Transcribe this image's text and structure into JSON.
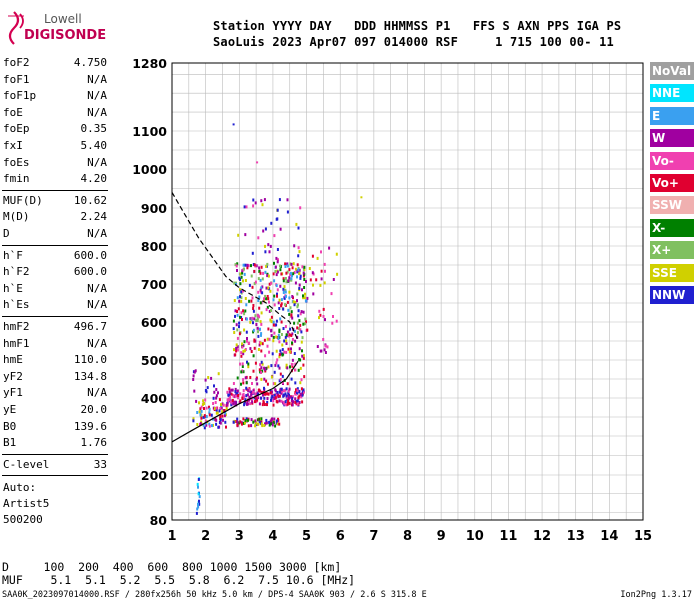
{
  "logo": {
    "line1": "Lowell",
    "line2": "DIGISONDE"
  },
  "header": {
    "line1": "Station YYYY DAY   DDD HHMMSS P1   FFS S AXN PPS IGA PS",
    "line2": "SaoLuis 2023 Apr07 097 014000 RSF     1 715 100 00- 11"
  },
  "params_group1": [
    {
      "label": "foF2",
      "value": "4.750"
    },
    {
      "label": "foF1",
      "value": "N/A"
    },
    {
      "label": "foF1p",
      "value": "N/A"
    },
    {
      "label": "foE",
      "value": "N/A"
    },
    {
      "label": "foEp",
      "value": "0.35"
    },
    {
      "label": "fxI",
      "value": "5.40"
    },
    {
      "label": "foEs",
      "value": "N/A"
    },
    {
      "label": "fmin",
      "value": "4.20"
    }
  ],
  "params_group2": [
    {
      "label": "MUF(D)",
      "value": "10.62"
    },
    {
      "label": "M(D)",
      "value": "2.24"
    },
    {
      "label": "D",
      "value": "N/A"
    }
  ],
  "params_group3": [
    {
      "label": "h`F",
      "value": "600.0"
    },
    {
      "label": "h`F2",
      "value": "600.0"
    },
    {
      "label": "h`E",
      "value": "N/A"
    },
    {
      "label": "h`Es",
      "value": "N/A"
    }
  ],
  "params_group4": [
    {
      "label": "hmF2",
      "value": "496.7"
    },
    {
      "label": "hmF1",
      "value": "N/A"
    },
    {
      "label": "hmE",
      "value": "110.0"
    },
    {
      "label": "yF2",
      "value": "134.8"
    },
    {
      "label": "yF1",
      "value": "N/A"
    },
    {
      "label": "yE",
      "value": "20.0"
    },
    {
      "label": "B0",
      "value": "139.6"
    },
    {
      "label": "B1",
      "value": "1.76"
    }
  ],
  "params_group5": [
    {
      "label": "C-level",
      "value": "33"
    }
  ],
  "auto": {
    "line1": "Auto:",
    "line2": "Artist5",
    "line3": "500200"
  },
  "legend": [
    {
      "label": "NoVal",
      "color": "#a0a0a0"
    },
    {
      "label": "NNE",
      "color": "#00e5ff"
    },
    {
      "label": "E",
      "color": "#3aa0f0"
    },
    {
      "label": "W",
      "color": "#a000a0"
    },
    {
      "label": "Vo-",
      "color": "#f040b0"
    },
    {
      "label": "Vo+",
      "color": "#e00030"
    },
    {
      "label": "SSW",
      "color": "#f0b0b0"
    },
    {
      "label": "X-",
      "color": "#008000"
    },
    {
      "label": "X+",
      "color": "#80c060"
    },
    {
      "label": "SSE",
      "color": "#d0d000"
    },
    {
      "label": "NNW",
      "color": "#2020d0"
    }
  ],
  "footer": {
    "d_line": "D     100  200  400  600  800 1000 1500 3000 [km]",
    "muf_line": "MUF    5.1  5.1  5.2  5.5  5.8  6.2  7.5 10.6 [MHz]",
    "file_line": "SAA0K_2023097014000.RSF / 280fx256h 50 kHz 5.0 km / DPS-4 SAA0K 903 / 2.6 S 315.8 E",
    "version": "Ion2Png 1.3.17"
  },
  "chart_data": {
    "type": "scatter",
    "title": "",
    "xlabel": "",
    "ylabel": "",
    "xlim": [
      1,
      15
    ],
    "ylim": [
      80,
      1280
    ],
    "x_ticks": [
      "1",
      "2",
      "3",
      "4",
      "5",
      "6",
      "7",
      "8",
      "9",
      "10",
      "11",
      "12",
      "13",
      "14",
      "15"
    ],
    "y_ticks": [
      {
        "value": 1280,
        "label": "1280"
      },
      {
        "value": 1100,
        "label": "1100"
      },
      {
        "value": 1000,
        "label": "1000"
      },
      {
        "value": 900,
        "label": "900"
      },
      {
        "value": 800,
        "label": "800"
      },
      {
        "value": 700,
        "label": "700"
      },
      {
        "value": 600,
        "label": "600"
      },
      {
        "value": 500,
        "label": "500"
      },
      {
        "value": 400,
        "label": "400"
      },
      {
        "value": 300,
        "label": "300"
      },
      {
        "value": 200,
        "label": "200"
      },
      {
        "value": 80,
        "label": "80"
      }
    ],
    "grid": true,
    "legend_position": "right",
    "dashed_trace": [
      {
        "x": 1.0,
        "y": 940
      },
      {
        "x": 1.4,
        "y": 880
      },
      {
        "x": 1.8,
        "y": 820
      },
      {
        "x": 2.2,
        "y": 770
      },
      {
        "x": 2.6,
        "y": 720
      },
      {
        "x": 3.0,
        "y": 690
      },
      {
        "x": 3.4,
        "y": 670
      },
      {
        "x": 3.8,
        "y": 650
      },
      {
        "x": 4.2,
        "y": 620
      },
      {
        "x": 4.5,
        "y": 600
      },
      {
        "x": 4.75,
        "y": 550
      }
    ],
    "solid_trace": [
      {
        "x": 1.0,
        "y": 285
      },
      {
        "x": 1.5,
        "y": 310
      },
      {
        "x": 2.0,
        "y": 335
      },
      {
        "x": 2.5,
        "y": 360
      },
      {
        "x": 3.0,
        "y": 385
      },
      {
        "x": 3.5,
        "y": 405
      },
      {
        "x": 4.0,
        "y": 425
      },
      {
        "x": 4.4,
        "y": 450
      },
      {
        "x": 4.75,
        "y": 497
      }
    ],
    "echo_regions": [
      {
        "xmin": 1.6,
        "xmax": 2.6,
        "ymin": 325,
        "ymax": 400,
        "density": 90,
        "colors": [
          "#a000a0",
          "#f040b0",
          "#e00030",
          "#2020d0",
          "#d0d000",
          "#3aa0f0"
        ]
      },
      {
        "xmin": 2.6,
        "xmax": 4.9,
        "ymin": 385,
        "ymax": 430,
        "density": 240,
        "colors": [
          "#a000a0",
          "#f040b0",
          "#e00030",
          "#2020d0"
        ]
      },
      {
        "xmin": 2.8,
        "xmax": 4.2,
        "ymin": 330,
        "ymax": 350,
        "density": 80,
        "colors": [
          "#a000a0",
          "#2020d0",
          "#e00030",
          "#008000",
          "#d0d000"
        ]
      },
      {
        "xmin": 2.8,
        "xmax": 4.9,
        "ymin": 440,
        "ymax": 560,
        "density": 160,
        "colors": [
          "#a000a0",
          "#f040b0",
          "#d0d000",
          "#2020d0",
          "#e00030",
          "#008000"
        ]
      },
      {
        "xmin": 2.8,
        "xmax": 5.0,
        "ymin": 560,
        "ymax": 760,
        "density": 340,
        "colors": [
          "#a000a0",
          "#f040b0",
          "#d0d000",
          "#2020d0",
          "#e00030",
          "#008000",
          "#80c060",
          "#3aa0f0"
        ]
      },
      {
        "xmin": 2.9,
        "xmax": 4.8,
        "ymin": 760,
        "ymax": 930,
        "density": 40,
        "colors": [
          "#a000a0",
          "#d0d000",
          "#2020d0",
          "#f040b0"
        ]
      },
      {
        "xmin": 5.0,
        "xmax": 6.0,
        "ymin": 600,
        "ymax": 800,
        "density": 30,
        "colors": [
          "#a000a0",
          "#d0d000",
          "#f040b0",
          "#e00030"
        ]
      },
      {
        "xmin": 5.3,
        "xmax": 5.6,
        "ymin": 520,
        "ymax": 560,
        "density": 10,
        "colors": [
          "#a000a0",
          "#f040b0"
        ]
      },
      {
        "xmin": 1.7,
        "xmax": 1.8,
        "ymin": 90,
        "ymax": 200,
        "density": 14,
        "colors": [
          "#3aa0f0",
          "#00e5ff",
          "#2020d0"
        ]
      },
      {
        "xmin": 1.6,
        "xmax": 2.4,
        "ymin": 400,
        "ymax": 480,
        "density": 20,
        "colors": [
          "#a000a0",
          "#d0d000",
          "#2020d0"
        ]
      }
    ],
    "isolated_points": [
      {
        "x": 2.8,
        "y": 1120,
        "color": "#2020d0"
      },
      {
        "x": 3.5,
        "y": 1020,
        "color": "#f040b0"
      },
      {
        "x": 6.6,
        "y": 930,
        "color": "#d0d000"
      }
    ]
  }
}
